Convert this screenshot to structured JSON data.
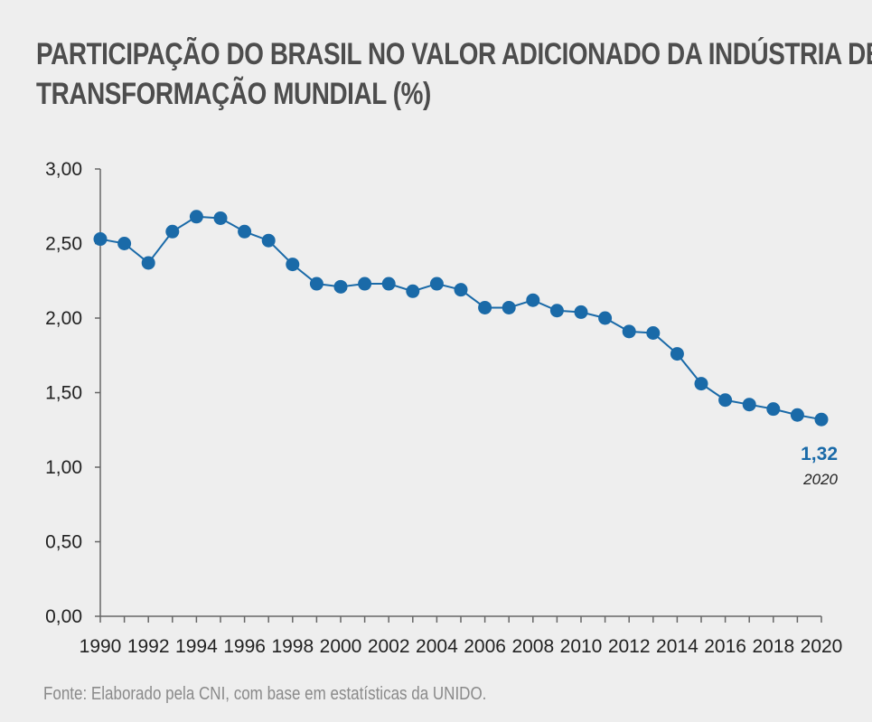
{
  "title": {
    "line1": "PARTICIPAÇÃO DO BRASIL NO VALOR ADICIONADO DA INDÚSTRIA DE",
    "line2": "TRANSFORMAÇÃO MUNDIAL (%)"
  },
  "source": "Fonte: Elaborado pela CNI, com base em estatísticas da UNIDO.",
  "colors": {
    "series": "#1a6aa8",
    "axis": "#666666",
    "text": "#222222"
  },
  "chart_data": {
    "type": "line",
    "title": "PARTICIPAÇÃO DO BRASIL NO VALOR ADICIONADO DA INDÚSTRIA DE TRANSFORMAÇÃO MUNDIAL (%)",
    "xlabel": "",
    "ylabel": "",
    "ylim": [
      0,
      3
    ],
    "y_ticks": [
      "0,00",
      "0,50",
      "1,00",
      "1,50",
      "2,00",
      "2,50",
      "3,00"
    ],
    "x_tick_labels": [
      "1990",
      "1992",
      "1994",
      "1996",
      "1998",
      "2000",
      "2002",
      "2004",
      "2006",
      "2008",
      "2010",
      "2012",
      "2014",
      "2016",
      "2018",
      "2020"
    ],
    "x": [
      1990,
      1991,
      1992,
      1993,
      1994,
      1995,
      1996,
      1997,
      1998,
      1999,
      2000,
      2001,
      2002,
      2003,
      2004,
      2005,
      2006,
      2007,
      2008,
      2009,
      2010,
      2011,
      2012,
      2013,
      2014,
      2015,
      2016,
      2017,
      2018,
      2019,
      2020
    ],
    "series": [
      {
        "name": "Brasil",
        "values": [
          2.53,
          2.5,
          2.37,
          2.58,
          2.68,
          2.67,
          2.58,
          2.52,
          2.36,
          2.23,
          2.21,
          2.23,
          2.23,
          2.18,
          2.23,
          2.19,
          2.07,
          2.07,
          2.12,
          2.05,
          2.04,
          2.0,
          1.91,
          1.9,
          1.76,
          1.56,
          1.45,
          1.42,
          1.39,
          1.35,
          1.32
        ]
      }
    ],
    "annotation": {
      "value_label": "1,32",
      "year_label": "2020"
    },
    "grid": false
  }
}
